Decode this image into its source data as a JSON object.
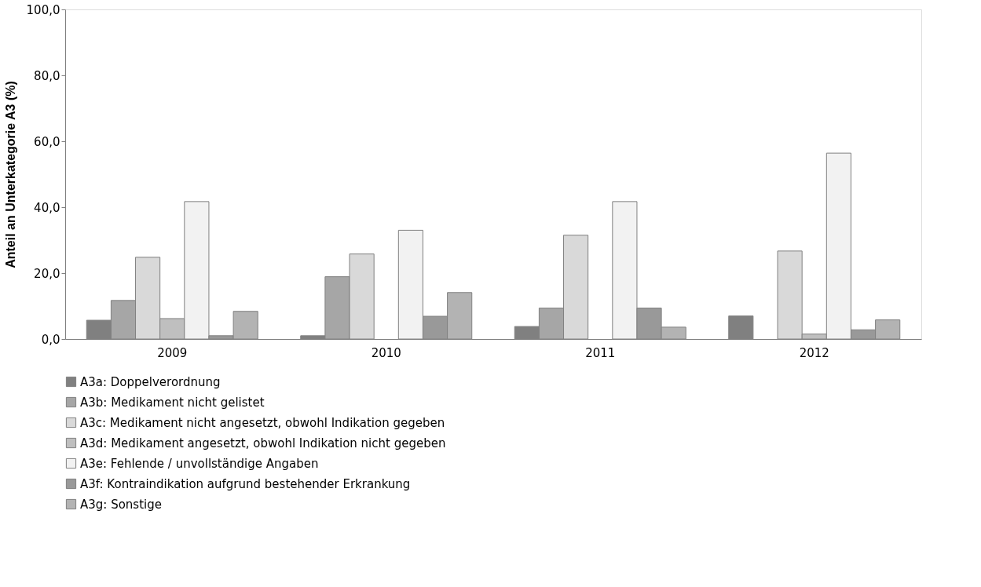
{
  "chart_data": {
    "type": "bar",
    "ylabel": "Anteil an Unterkategorie A3 (%)",
    "categories": [
      "2009",
      "2010",
      "2011",
      "2012"
    ],
    "series": [
      {
        "name": "A3a: Doppelverordnung",
        "color": "#808080",
        "values": [
          5.7,
          1.0,
          3.8,
          7.0
        ]
      },
      {
        "name": "A3b: Medikament nicht gelistet",
        "color": "#a6a6a6",
        "values": [
          11.7,
          18.9,
          9.4,
          null
        ]
      },
      {
        "name": "A3c: Medikament nicht angesetzt, obwohl Indikation gegeben",
        "color": "#d9d9d9",
        "values": [
          24.8,
          25.8,
          31.5,
          26.7
        ]
      },
      {
        "name": "A3d: Medikament angesetzt, obwohl Indikation nicht gegeben",
        "color": "#bfbfbf",
        "values": [
          6.2,
          null,
          null,
          1.5
        ]
      },
      {
        "name": "A3e: Fehlende / unvollständige Angaben",
        "color": "#f2f2f2",
        "values": [
          41.7,
          33.0,
          41.7,
          56.4
        ]
      },
      {
        "name": "A3f: Kontraindikation aufgrund bestehender Erkrankung",
        "color": "#999999",
        "values": [
          1.0,
          6.9,
          9.4,
          2.8
        ]
      },
      {
        "name": "A3g: Sonstige",
        "color": "#b3b3b3",
        "values": [
          8.4,
          14.1,
          3.6,
          5.8
        ]
      }
    ],
    "ylim": [
      0,
      100
    ],
    "yticks": [
      {
        "value": 0,
        "label": "0,0"
      },
      {
        "value": 20,
        "label": "20,0"
      },
      {
        "value": 40,
        "label": "40,0"
      },
      {
        "value": 60,
        "label": "60,0"
      },
      {
        "value": 80,
        "label": "80,0"
      },
      {
        "value": 100,
        "label": "100,0"
      }
    ],
    "grid": false,
    "legend": "bottom"
  }
}
